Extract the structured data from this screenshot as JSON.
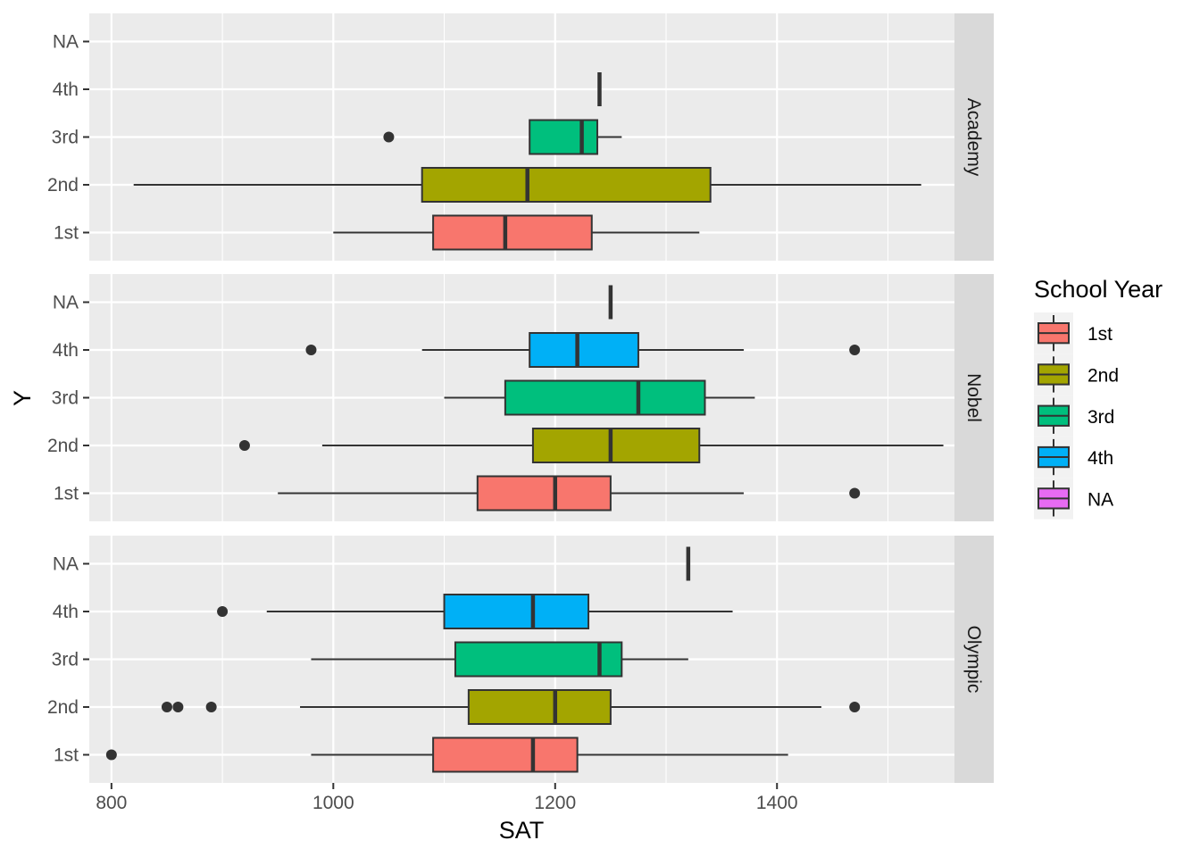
{
  "chart_data": {
    "type": "boxplot",
    "orientation": "horizontal",
    "xlabel": "SAT",
    "ylabel": "Y",
    "xlim": [
      780,
      1560
    ],
    "x_ticks": [
      800,
      1000,
      1200,
      1400
    ],
    "categories": [
      "1st",
      "2nd",
      "3rd",
      "4th",
      "NA"
    ],
    "grid": true,
    "legend": {
      "title": "School Year",
      "position": "right",
      "entries": [
        {
          "label": "1st",
          "color": "#F8766D"
        },
        {
          "label": "2nd",
          "color": "#A3A500"
        },
        {
          "label": "3rd",
          "color": "#00BF7D"
        },
        {
          "label": "4th",
          "color": "#00B0F6"
        },
        {
          "label": "NA",
          "color": "#E76BF3"
        }
      ]
    },
    "facets": [
      {
        "name": "Academy",
        "boxes": [
          {
            "category": "1st",
            "color": "#F8766D",
            "min": 1000,
            "q1": 1090,
            "median": 1155,
            "q3": 1233,
            "max": 1330,
            "outliers": []
          },
          {
            "category": "2nd",
            "color": "#A3A500",
            "min": 820,
            "q1": 1080,
            "median": 1175,
            "q3": 1340,
            "max": 1530,
            "outliers": []
          },
          {
            "category": "3rd",
            "color": "#00BF7D",
            "min": 1177,
            "q1": 1177,
            "median": 1224,
            "q3": 1238,
            "max": 1260,
            "outliers": [
              1050
            ]
          },
          {
            "category": "4th",
            "color": "#00B0F6",
            "min": 1240,
            "q1": 1240,
            "median": 1240,
            "q3": 1240,
            "max": 1240,
            "outliers": []
          }
        ]
      },
      {
        "name": "Nobel",
        "boxes": [
          {
            "category": "1st",
            "color": "#F8766D",
            "min": 950,
            "q1": 1130,
            "median": 1200,
            "q3": 1250,
            "max": 1370,
            "outliers": [
              1470
            ]
          },
          {
            "category": "2nd",
            "color": "#A3A500",
            "min": 990,
            "q1": 1180,
            "median": 1250,
            "q3": 1330,
            "max": 1550,
            "outliers": [
              920
            ]
          },
          {
            "category": "3rd",
            "color": "#00BF7D",
            "min": 1100,
            "q1": 1155,
            "median": 1275,
            "q3": 1335,
            "max": 1380,
            "outliers": []
          },
          {
            "category": "4th",
            "color": "#00B0F6",
            "min": 1080,
            "q1": 1177,
            "median": 1220,
            "q3": 1275,
            "max": 1370,
            "outliers": [
              980,
              1470
            ]
          },
          {
            "category": "NA",
            "color": "#E76BF3",
            "min": 1250,
            "q1": 1250,
            "median": 1250,
            "q3": 1250,
            "max": 1250,
            "outliers": []
          }
        ]
      },
      {
        "name": "Olympic",
        "boxes": [
          {
            "category": "1st",
            "color": "#F8766D",
            "min": 980,
            "q1": 1090,
            "median": 1180,
            "q3": 1220,
            "max": 1410,
            "outliers": [
              800
            ]
          },
          {
            "category": "2nd",
            "color": "#A3A500",
            "min": 970,
            "q1": 1122,
            "median": 1200,
            "q3": 1250,
            "max": 1440,
            "outliers": [
              850,
              860,
              890,
              1470
            ]
          },
          {
            "category": "3rd",
            "color": "#00BF7D",
            "min": 980,
            "q1": 1110,
            "median": 1240,
            "q3": 1260,
            "max": 1320,
            "outliers": []
          },
          {
            "category": "4th",
            "color": "#00B0F6",
            "min": 940,
            "q1": 1100,
            "median": 1180,
            "q3": 1230,
            "max": 1360,
            "outliers": [
              900
            ]
          },
          {
            "category": "NA",
            "color": "#E76BF3",
            "min": 1320,
            "q1": 1320,
            "median": 1320,
            "q3": 1320,
            "max": 1320,
            "outliers": []
          }
        ]
      }
    ]
  }
}
